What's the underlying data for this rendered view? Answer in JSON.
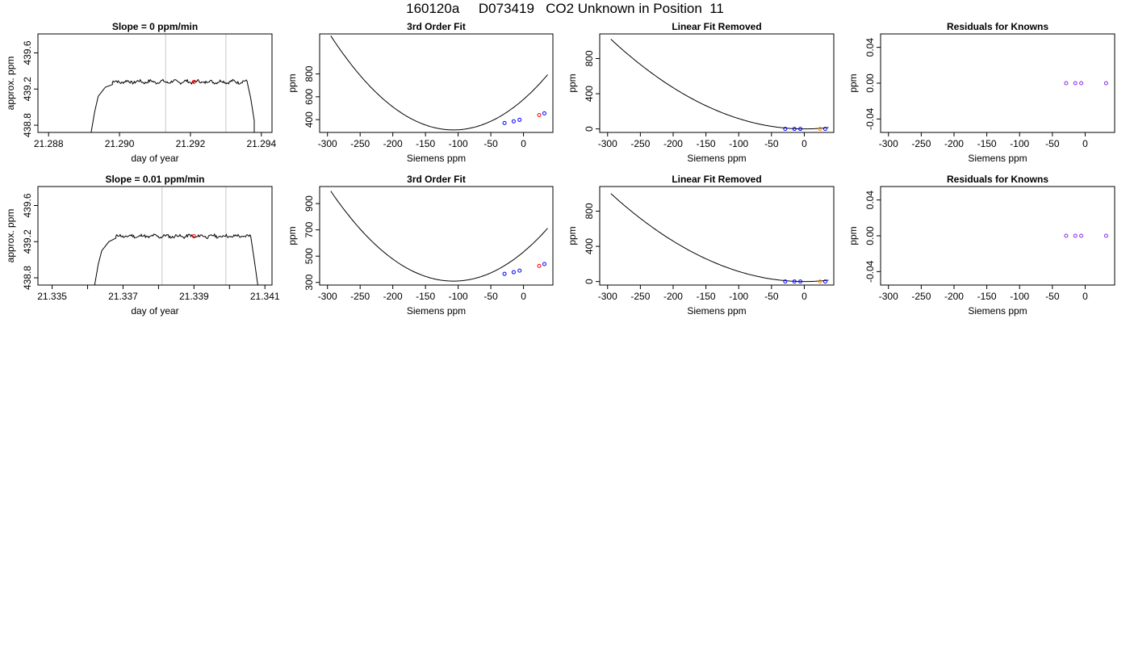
{
  "figure": {
    "title": "160120a     D073419   CO2 Unknown in Position  11"
  },
  "chart_data": [
    {
      "type": "line",
      "row": 0,
      "col": 0,
      "title": "Slope =  0  ppm/min",
      "xlabel": "day of year",
      "ylabel": "approx. ppm",
      "xlim": [
        21.2877,
        21.2943
      ],
      "ylim": [
        438.72,
        439.81
      ],
      "xticks": [
        21.288,
        21.29,
        21.292,
        21.294
      ],
      "xticklabels": [
        "21.288",
        "21.290",
        "21.292",
        "21.294"
      ],
      "yticks": [
        438.8,
        439.2,
        439.6
      ],
      "yticklabels": [
        "438.8",
        "439.2",
        "439.6"
      ],
      "vlines": [
        21.2913,
        21.293
      ],
      "trace": {
        "rise": [
          [
            21.2892,
            438.72
          ],
          [
            21.2893,
            438.95
          ],
          [
            21.2894,
            439.12
          ],
          [
            21.2896,
            439.22
          ],
          [
            21.2898,
            439.25
          ]
        ],
        "flat_from": 21.2898,
        "flat_to": 21.2936,
        "level": 439.28,
        "fall": [
          [
            21.2936,
            439.28
          ],
          [
            21.2937,
            439.1
          ],
          [
            21.2938,
            438.85
          ],
          [
            21.2938,
            438.72
          ]
        ]
      },
      "marker": {
        "x": 21.2921,
        "y": 439.28,
        "color": "#ff0000"
      }
    },
    {
      "type": "line",
      "row": 0,
      "col": 1,
      "title": "3rd Order Fit",
      "xlabel": "Siemens ppm",
      "ylabel": "ppm",
      "xlim": [
        -312,
        45
      ],
      "ylim": [
        288,
        1150
      ],
      "xticks": [
        -300,
        -250,
        -200,
        -150,
        -100,
        -50,
        0
      ],
      "xticklabels": [
        "-300",
        "-250",
        "-200",
        "-150",
        "-100",
        "-50",
        "0"
      ],
      "yticks": [
        400,
        600,
        800
      ],
      "yticklabels": [
        "400",
        "600",
        "800"
      ],
      "curve": {
        "x0": -295,
        "x1": 37,
        "xmin": -107,
        "ymin": 310,
        "k": 0.02331
      },
      "points": [
        {
          "x": -29,
          "y": 370,
          "color": "#0000ff"
        },
        {
          "x": -15,
          "y": 385,
          "color": "#0000ff"
        },
        {
          "x": -6,
          "y": 398,
          "color": "#0000ff"
        },
        {
          "x": 24,
          "y": 440,
          "color": "#ff0000"
        },
        {
          "x": 32,
          "y": 455,
          "color": "#0000ff"
        }
      ]
    },
    {
      "type": "line",
      "row": 0,
      "col": 2,
      "title": "Linear Fit Removed",
      "xlabel": "Siemens ppm",
      "ylabel": "ppm",
      "xlim": [
        -312,
        45
      ],
      "ylim": [
        -40,
        1080
      ],
      "xticks": [
        -300,
        -250,
        -200,
        -150,
        -100,
        -50,
        0
      ],
      "xticklabels": [
        "-300",
        "-250",
        "-200",
        "-150",
        "-100",
        "-50",
        "0"
      ],
      "yticks": [
        0,
        400,
        800
      ],
      "yticklabels": [
        "0",
        "400",
        "800"
      ],
      "curve": {
        "x0": -295,
        "x1": 37,
        "xmin": 0,
        "ymin": 0,
        "k": 0.01172
      },
      "points": [
        {
          "x": -29,
          "y": 0,
          "color": "#0000ff"
        },
        {
          "x": -15,
          "y": 0,
          "color": "#0000ff"
        },
        {
          "x": -6,
          "y": 0,
          "color": "#0000ff"
        },
        {
          "x": 24,
          "y": 0,
          "color": "#ff8c00"
        },
        {
          "x": 32,
          "y": 0,
          "color": "#0000ff"
        }
      ]
    },
    {
      "type": "scatter",
      "row": 0,
      "col": 3,
      "title": "Residuals for Knowns",
      "xlabel": "Siemens ppm",
      "ylabel": "ppm",
      "xlim": [
        -312,
        45
      ],
      "ylim": [
        -0.055,
        0.055
      ],
      "xticks": [
        -300,
        -250,
        -200,
        -150,
        -100,
        -50,
        0
      ],
      "xticklabels": [
        "-300",
        "-250",
        "-200",
        "-150",
        "-100",
        "-50",
        "0"
      ],
      "yticks": [
        -0.04,
        0.0,
        0.04
      ],
      "yticklabels": [
        "-0.04",
        "0.00",
        "0.04"
      ],
      "points": [
        {
          "x": -29,
          "y": 0,
          "color": "#8a2be2"
        },
        {
          "x": -15,
          "y": 0,
          "color": "#8a2be2"
        },
        {
          "x": -6,
          "y": 0,
          "color": "#8a2be2"
        },
        {
          "x": 32,
          "y": 0,
          "color": "#8a2be2"
        }
      ]
    },
    {
      "type": "line",
      "row": 1,
      "col": 0,
      "title": "Slope =  0.01  ppm/min",
      "xlabel": "day of year",
      "ylabel": "approx. ppm",
      "xlim": [
        21.3346,
        21.3412
      ],
      "ylim": [
        438.72,
        439.81
      ],
      "xticks": [
        21.335,
        21.336,
        21.337,
        21.338,
        21.339,
        21.34,
        21.341
      ],
      "xticklabels": [
        "21.335",
        "",
        "21.337",
        "",
        "21.339",
        "",
        "21.341"
      ],
      "yticks": [
        438.8,
        439.2,
        439.6
      ],
      "yticklabels": [
        "438.8",
        "439.2",
        "439.6"
      ],
      "vlines": [
        21.3381,
        21.3399
      ],
      "trace": {
        "rise": [
          [
            21.3362,
            438.72
          ],
          [
            21.3363,
            438.95
          ],
          [
            21.3364,
            439.1
          ],
          [
            21.3366,
            439.2
          ],
          [
            21.3368,
            439.24
          ]
        ],
        "flat_from": 21.3368,
        "flat_to": 21.3406,
        "level": 439.26,
        "fall": [
          [
            21.3406,
            439.26
          ],
          [
            21.3407,
            439.0
          ],
          [
            21.3408,
            438.72
          ]
        ]
      },
      "marker": {
        "x": 21.339,
        "y": 439.26,
        "color": "#ff0000"
      }
    },
    {
      "type": "line",
      "row": 1,
      "col": 1,
      "title": "3rd Order Fit",
      "xlabel": "Siemens ppm",
      "ylabel": "ppm",
      "xlim": [
        -312,
        45
      ],
      "ylim": [
        280,
        1030
      ],
      "xticks": [
        -300,
        -250,
        -200,
        -150,
        -100,
        -50,
        0
      ],
      "xticklabels": [
        "-300",
        "-250",
        "-200",
        "-150",
        "-100",
        "-50",
        "0"
      ],
      "yticks": [
        300,
        500,
        700,
        900
      ],
      "yticklabels": [
        "300",
        "500",
        "700",
        "900"
      ],
      "curve": {
        "x0": -295,
        "x1": 37,
        "xmin": -107,
        "ymin": 310,
        "k": 0.01939
      },
      "points": [
        {
          "x": -29,
          "y": 365,
          "color": "#0000ff"
        },
        {
          "x": -15,
          "y": 378,
          "color": "#0000ff"
        },
        {
          "x": -6,
          "y": 390,
          "color": "#0000ff"
        },
        {
          "x": 24,
          "y": 425,
          "color": "#ff0000"
        },
        {
          "x": 32,
          "y": 440,
          "color": "#0000ff"
        }
      ]
    },
    {
      "type": "line",
      "row": 1,
      "col": 2,
      "title": "Linear Fit Removed",
      "xlabel": "Siemens ppm",
      "ylabel": "ppm",
      "xlim": [
        -312,
        45
      ],
      "ylim": [
        -40,
        1080
      ],
      "xticks": [
        -300,
        -250,
        -200,
        -150,
        -100,
        -50,
        0
      ],
      "xticklabels": [
        "-300",
        "-250",
        "-200",
        "-150",
        "-100",
        "-50",
        "0"
      ],
      "yticks": [
        0,
        400,
        800
      ],
      "yticklabels": [
        "0",
        "400",
        "800"
      ],
      "curve": {
        "x0": -295,
        "x1": 37,
        "xmin": 0,
        "ymin": 0,
        "k": 0.01149
      },
      "points": [
        {
          "x": -29,
          "y": 0,
          "color": "#0000ff"
        },
        {
          "x": -15,
          "y": 0,
          "color": "#0000ff"
        },
        {
          "x": -6,
          "y": 0,
          "color": "#0000ff"
        },
        {
          "x": 24,
          "y": 0,
          "color": "#ff8c00"
        },
        {
          "x": 32,
          "y": 0,
          "color": "#0000ff"
        }
      ]
    },
    {
      "type": "scatter",
      "row": 1,
      "col": 3,
      "title": "Residuals for Knowns",
      "xlabel": "Siemens ppm",
      "ylabel": "ppm",
      "xlim": [
        -312,
        45
      ],
      "ylim": [
        -0.055,
        0.055
      ],
      "xticks": [
        -300,
        -250,
        -200,
        -150,
        -100,
        -50,
        0
      ],
      "xticklabels": [
        "-300",
        "-250",
        "-200",
        "-150",
        "-100",
        "-50",
        "0"
      ],
      "yticks": [
        -0.04,
        0.0,
        0.04
      ],
      "yticklabels": [
        "-0.04",
        "0.00",
        "0.04"
      ],
      "points": [
        {
          "x": -29,
          "y": 0,
          "color": "#8a2be2"
        },
        {
          "x": -15,
          "y": 0,
          "color": "#8a2be2"
        },
        {
          "x": -6,
          "y": 0,
          "color": "#8a2be2"
        },
        {
          "x": 32,
          "y": 0,
          "color": "#8a2be2"
        }
      ]
    }
  ]
}
